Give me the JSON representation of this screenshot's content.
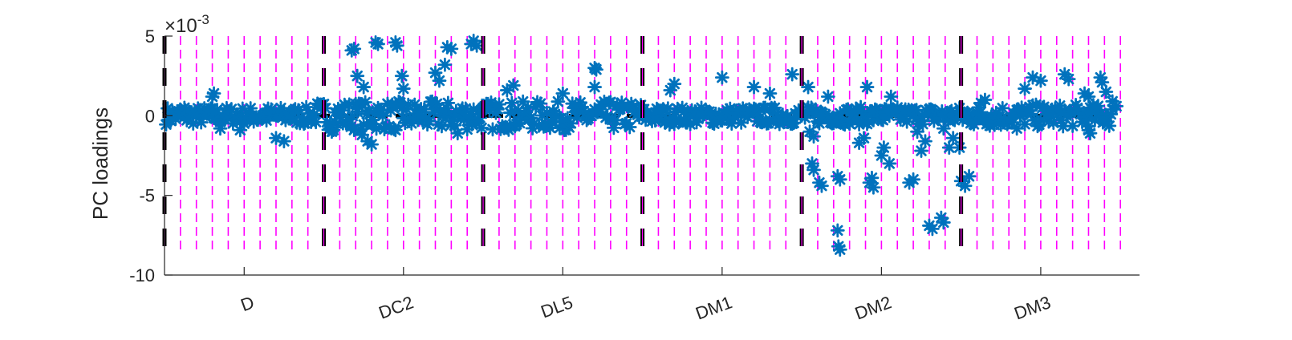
{
  "chart_data": {
    "type": "scatter",
    "ylabel": "PC loadings",
    "yexponent": {
      "base": "×10",
      "power": "-3"
    },
    "yticks": [
      {
        "value": 5,
        "label": "5"
      },
      {
        "value": 0,
        "label": "0"
      },
      {
        "value": -5,
        "label": "-5"
      },
      {
        "value": -10,
        "label": "-10"
      }
    ],
    "ylim": [
      -10,
      5
    ],
    "xlim": [
      0,
      1224
    ],
    "categories": [
      "D",
      "DC2",
      "DL5",
      "DM1",
      "DM2",
      "DM3"
    ],
    "category_tick_positions": [
      100,
      300,
      500,
      700,
      900,
      1100
    ],
    "group_boundaries": [
      200,
      400,
      600,
      800,
      1000
    ],
    "sub_boundary_spacing": 20,
    "dashed_line_range": [
      -8.5,
      5
    ],
    "marker": "asterisk",
    "colors": {
      "points": "#0072BD",
      "minor_lines": "#FF00FF",
      "major_lines": "#000000",
      "zero_line": "#000000",
      "axes": "#262626"
    },
    "series": [
      {
        "points": [
          [
            25,
            0.5
          ],
          [
            60,
            1.2
          ],
          [
            62,
            1.4
          ],
          [
            70,
            -0.8
          ],
          [
            95,
            -0.9
          ],
          [
            140,
            -1.4
          ],
          [
            150,
            -1.6
          ],
          [
            175,
            -0.5
          ],
          [
            208,
            -0.8
          ],
          [
            210,
            -1.0
          ],
          [
            235,
            4.1
          ],
          [
            238,
            4.2
          ],
          [
            242,
            2.5
          ],
          [
            250,
            1.8
          ],
          [
            248,
            -1.2
          ],
          [
            255,
            -1.6
          ],
          [
            260,
            -1.8
          ],
          [
            265,
            4.6
          ],
          [
            268,
            4.5
          ],
          [
            290,
            4.6
          ],
          [
            292,
            4.4
          ],
          [
            298,
            2.5
          ],
          [
            300,
            1.7
          ],
          [
            290,
            -0.9
          ],
          [
            340,
            2.7
          ],
          [
            345,
            2.2
          ],
          [
            352,
            3.2
          ],
          [
            355,
            4.3
          ],
          [
            360,
            4.2
          ],
          [
            368,
            -1.1
          ],
          [
            385,
            4.5
          ],
          [
            388,
            4.7
          ],
          [
            392,
            4.4
          ],
          [
            430,
            1.6
          ],
          [
            438,
            1.9
          ],
          [
            500,
            1.4
          ],
          [
            540,
            3.0
          ],
          [
            542,
            2.9
          ],
          [
            540,
            1.8
          ],
          [
            635,
            1.6
          ],
          [
            640,
            2.0
          ],
          [
            700,
            2.4
          ],
          [
            740,
            1.8
          ],
          [
            760,
            1.4
          ],
          [
            788,
            2.6
          ],
          [
            808,
            1.8
          ],
          [
            810,
            -1.0
          ],
          [
            815,
            -1.3
          ],
          [
            813,
            -3.0
          ],
          [
            815,
            -3.4
          ],
          [
            822,
            -4.2
          ],
          [
            825,
            -4.4
          ],
          [
            833,
            1.2
          ],
          [
            845,
            -3.8
          ],
          [
            848,
            -4.0
          ],
          [
            845,
            -7.2
          ],
          [
            846,
            -8.2
          ],
          [
            848,
            -8.4
          ],
          [
            860,
            -0.5
          ],
          [
            872,
            -1.7
          ],
          [
            878,
            -1.4
          ],
          [
            882,
            1.8
          ],
          [
            885,
            -4.2
          ],
          [
            890,
            -4.5
          ],
          [
            888,
            -3.9
          ],
          [
            900,
            -2.5
          ],
          [
            903,
            -2.0
          ],
          [
            910,
            -3.0
          ],
          [
            912,
            1.2
          ],
          [
            935,
            -4.2
          ],
          [
            940,
            -4.0
          ],
          [
            945,
            -1.0
          ],
          [
            950,
            -2.2
          ],
          [
            955,
            -1.6
          ],
          [
            960,
            -6.9
          ],
          [
            964,
            -7.1
          ],
          [
            978,
            -0.8
          ],
          [
            985,
            -2.0
          ],
          [
            990,
            -1.4
          ],
          [
            998,
            -2.0
          ],
          [
            975,
            -6.4
          ],
          [
            978,
            -6.7
          ],
          [
            1000,
            -4.1
          ],
          [
            1005,
            -4.4
          ],
          [
            1010,
            -3.8
          ],
          [
            1025,
            0.8
          ],
          [
            1030,
            1.0
          ],
          [
            1070,
            -0.8
          ],
          [
            1080,
            1.7
          ],
          [
            1090,
            2.4
          ],
          [
            1100,
            2.2
          ],
          [
            1130,
            2.6
          ],
          [
            1135,
            2.3
          ],
          [
            1155,
            1.4
          ],
          [
            1160,
            1.2
          ],
          [
            1160,
            -0.9
          ],
          [
            1162,
            -1.1
          ],
          [
            1175,
            2.4
          ],
          [
            1177,
            2.1
          ],
          [
            1182,
            1.5
          ],
          [
            1190,
            0.9
          ],
          [
            1195,
            0.6
          ]
        ]
      }
    ]
  }
}
